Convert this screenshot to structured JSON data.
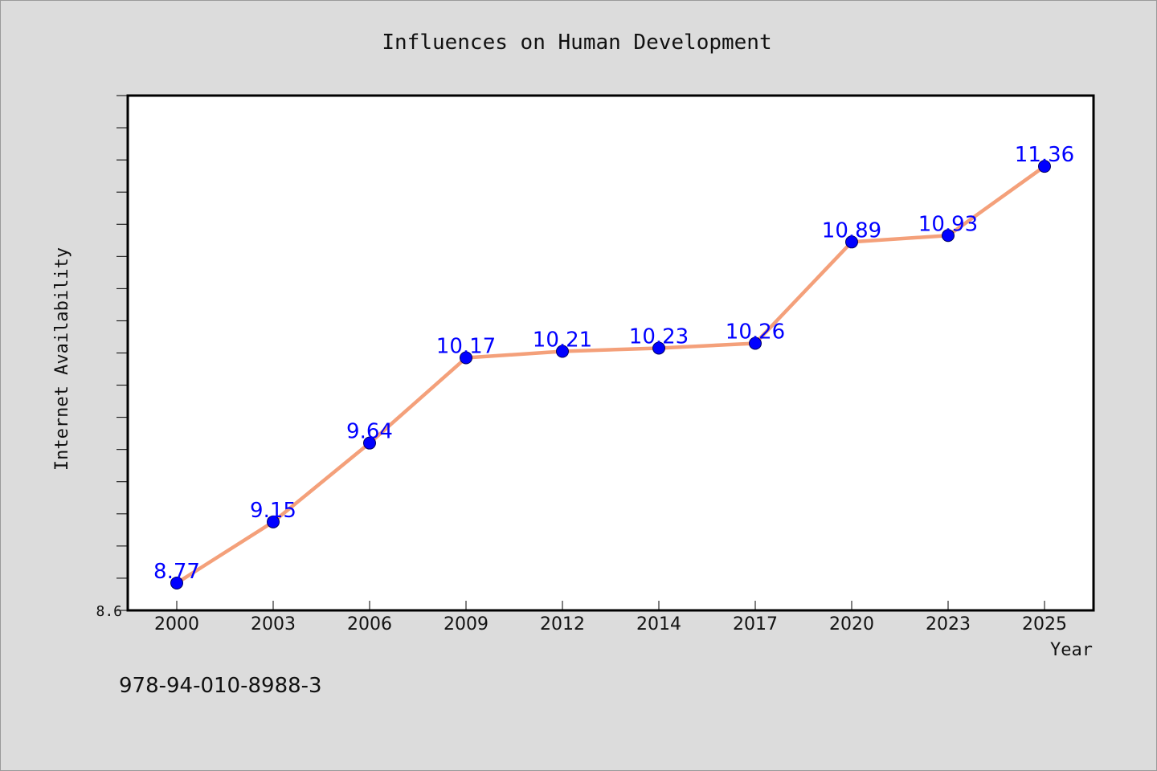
{
  "chart_data": {
    "type": "line",
    "title": "Influences on Human Development",
    "xlabel": "Year",
    "ylabel": "Internet Availability",
    "categories": [
      "2000",
      "2003",
      "2006",
      "2009",
      "2012",
      "2014",
      "2017",
      "2020",
      "2023",
      "2025"
    ],
    "series": [
      {
        "values": [
          8.77,
          9.15,
          9.64,
          10.17,
          10.21,
          10.23,
          10.26,
          10.89,
          10.93,
          11.36
        ],
        "data_labels": [
          "8.77",
          "9.15",
          "9.64",
          "10.17",
          "10.21",
          "10.23",
          "10.26",
          "10.89",
          "10.93",
          "11.36"
        ]
      }
    ],
    "ylim": [
      8.6,
      11.8
    ],
    "ytick_labels": [
      "8.6"
    ],
    "grid": false,
    "line_color": "#f4a07a",
    "marker_color": "#0000ff",
    "label_color": "#0000ff",
    "background": "#dcdcdc",
    "plot_background": "#ffffff"
  },
  "footer": {
    "isbn": "978-94-010-8988-3"
  }
}
